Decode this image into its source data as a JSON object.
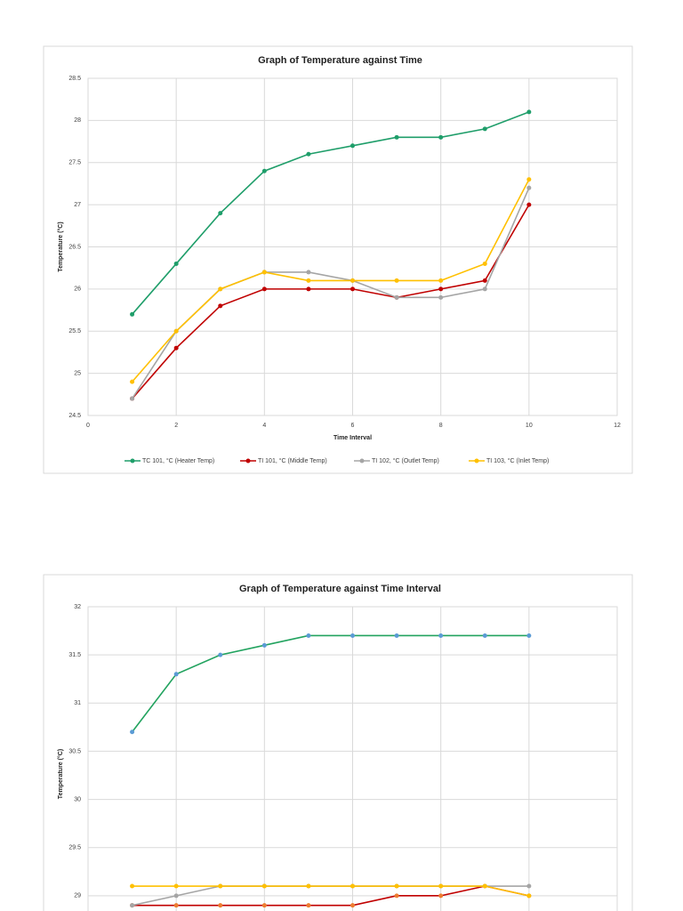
{
  "chart_data": [
    {
      "type": "line",
      "title": "Graph of Temperature against Time",
      "x_label": "Time Interval",
      "y_label": "Temperature (°C)",
      "x": [
        1,
        2,
        3,
        4,
        5,
        6,
        7,
        8,
        9,
        10
      ],
      "xlim": [
        0,
        12
      ],
      "xticks": [
        0,
        2,
        4,
        6,
        8,
        10,
        12
      ],
      "ylim": [
        24.5,
        28.5
      ],
      "yticks": [
        24.5,
        25,
        25.5,
        26,
        26.5,
        27,
        27.5,
        28,
        28.5
      ],
      "grid": true,
      "legend": "bottom",
      "series": [
        {
          "name": "TC 101, °C (Heater Temp)",
          "color": "#1f9e6a",
          "values": [
            25.7,
            26.3,
            26.9,
            27.4,
            27.6,
            27.7,
            27.8,
            27.8,
            27.9,
            28.1
          ]
        },
        {
          "name": "TI 101, °C (Middle Temp)",
          "color": "#c00000",
          "values": [
            24.7,
            25.3,
            25.8,
            26.0,
            26.0,
            26.0,
            25.9,
            26.0,
            26.1,
            27.0
          ]
        },
        {
          "name": "TI 102, °C (Outlet Temp)",
          "color": "#a5a5a5",
          "values": [
            24.7,
            25.5,
            26.0,
            26.2,
            26.2,
            26.1,
            25.9,
            25.9,
            26.0,
            27.2
          ]
        },
        {
          "name": "TI 103, °C (Inlet Temp)",
          "color": "#ffc000",
          "values": [
            24.9,
            25.5,
            26.0,
            26.2,
            26.1,
            26.1,
            26.1,
            26.1,
            26.3,
            27.3
          ]
        }
      ]
    },
    {
      "type": "line",
      "title": "Graph of Temperature against Time Interval",
      "y_label": "Temperature (°C)",
      "x": [
        1,
        2,
        3,
        4,
        5,
        6,
        7,
        8,
        9,
        10
      ],
      "xlim": [
        0,
        12
      ],
      "ylim": [
        28.5,
        32
      ],
      "yticks": [
        29,
        29.5,
        30,
        30.5,
        31,
        31.5,
        32
      ],
      "grid": true,
      "series": [
        {
          "color": "#22a35f",
          "marker_color": "#5b9bd5",
          "values": [
            30.7,
            31.3,
            31.5,
            31.6,
            31.7,
            31.7,
            31.7,
            31.7,
            31.7,
            31.7
          ]
        },
        {
          "color": "#c00000",
          "marker_color": "#ed7d31",
          "values": [
            28.9,
            28.9,
            28.9,
            28.9,
            28.9,
            28.9,
            29.0,
            29.0,
            29.1,
            29.0
          ]
        },
        {
          "color": "#a5a5a5",
          "marker_color": "#a5a5a5",
          "values": [
            28.9,
            29.0,
            29.1,
            29.1,
            29.1,
            29.1,
            29.1,
            29.1,
            29.1,
            29.1
          ]
        },
        {
          "color": "#ffc000",
          "marker_color": "#ffc000",
          "values": [
            29.1,
            29.1,
            29.1,
            29.1,
            29.1,
            29.1,
            29.1,
            29.1,
            29.1,
            29.0
          ]
        }
      ]
    }
  ]
}
